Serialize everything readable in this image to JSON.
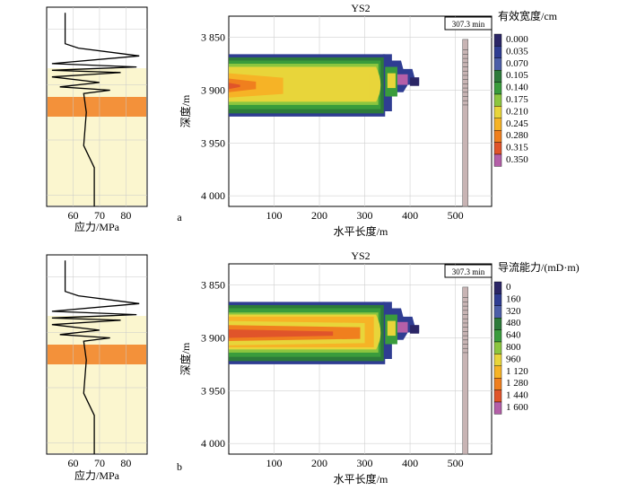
{
  "chart_data": [
    {
      "type": "contour",
      "panel_label": "a",
      "title": "YS2",
      "time_label": "307.3 min",
      "xlabel": "水平长度/m",
      "ylabel": "深度/m",
      "xlim": [
        0,
        580
      ],
      "ylim": [
        3830,
        4010
      ],
      "y_inverted": true,
      "x_ticks": [
        "100",
        "200",
        "300",
        "400",
        "500"
      ],
      "y_ticks": [
        "3 850",
        "3 900",
        "3 950",
        "4 000"
      ],
      "legend_title": "有效宽度/cm",
      "legend_levels": [
        "0.000",
        "0.035",
        "0.070",
        "0.105",
        "0.140",
        "0.175",
        "0.210",
        "0.245",
        "0.280",
        "0.315",
        "0.350"
      ],
      "stress_plot": {
        "xlabel": "应力/MPa",
        "x_ticks": [
          "60",
          "70",
          "80"
        ],
        "xlim": [
          50,
          88
        ],
        "series": [
          {
            "stress": 57,
            "depth": 3835
          },
          {
            "stress": 57,
            "depth": 3863
          },
          {
            "stress": 62,
            "depth": 3867
          },
          {
            "stress": 85,
            "depth": 3874
          },
          {
            "stress": 52,
            "depth": 3881
          },
          {
            "stress": 84,
            "depth": 3884
          },
          {
            "stress": 52,
            "depth": 3887
          },
          {
            "stress": 78,
            "depth": 3889
          },
          {
            "stress": 52,
            "depth": 3893
          },
          {
            "stress": 70,
            "depth": 3898
          },
          {
            "stress": 55,
            "depth": 3902
          },
          {
            "stress": 74,
            "depth": 3905
          },
          {
            "stress": 64,
            "depth": 3908
          },
          {
            "stress": 65,
            "depth": 3925
          },
          {
            "stress": 64,
            "depth": 3955
          },
          {
            "stress": 68,
            "depth": 3975
          },
          {
            "stress": 68,
            "depth": 4010
          }
        ]
      }
    },
    {
      "type": "contour",
      "panel_label": "b",
      "title": "YS2",
      "time_label": "307.3 min",
      "xlabel": "水平长度/m",
      "ylabel": "深度/m",
      "xlim": [
        0,
        580
      ],
      "ylim": [
        3830,
        4010
      ],
      "y_inverted": true,
      "x_ticks": [
        "100",
        "200",
        "300",
        "400",
        "500"
      ],
      "y_ticks": [
        "3 850",
        "3 900",
        "3 950",
        "4 000"
      ],
      "legend_title": "导流能力/(mD·m)",
      "legend_levels": [
        "0",
        "160",
        "320",
        "480",
        "640",
        "800",
        "960",
        "1 120",
        "1 280",
        "1 440",
        "1 600"
      ],
      "stress_plot": {
        "xlabel": "应力/MPa",
        "x_ticks": [
          "60",
          "70",
          "80"
        ],
        "xlim": [
          50,
          88
        ],
        "series": [
          {
            "stress": 57,
            "depth": 3835
          },
          {
            "stress": 57,
            "depth": 3863
          },
          {
            "stress": 62,
            "depth": 3867
          },
          {
            "stress": 85,
            "depth": 3874
          },
          {
            "stress": 52,
            "depth": 3881
          },
          {
            "stress": 84,
            "depth": 3884
          },
          {
            "stress": 52,
            "depth": 3887
          },
          {
            "stress": 78,
            "depth": 3889
          },
          {
            "stress": 52,
            "depth": 3893
          },
          {
            "stress": 70,
            "depth": 3898
          },
          {
            "stress": 55,
            "depth": 3902
          },
          {
            "stress": 74,
            "depth": 3905
          },
          {
            "stress": 64,
            "depth": 3908
          },
          {
            "stress": 65,
            "depth": 3925
          },
          {
            "stress": 64,
            "depth": 3955
          },
          {
            "stress": 68,
            "depth": 3975
          },
          {
            "stress": 68,
            "depth": 4010
          }
        ]
      }
    }
  ],
  "colors": {
    "palette": [
      "#2b2666",
      "#2f3d92",
      "#4c5ea8",
      "#2d7a3a",
      "#3a9c3c",
      "#8cc63f",
      "#e8d53a",
      "#f6b326",
      "#f07f1e",
      "#e0542a",
      "#b45fa8"
    ],
    "stress_background": "#fbf6cf",
    "stress_band": "#f3913a",
    "wellbore": "#c8b4b4"
  }
}
